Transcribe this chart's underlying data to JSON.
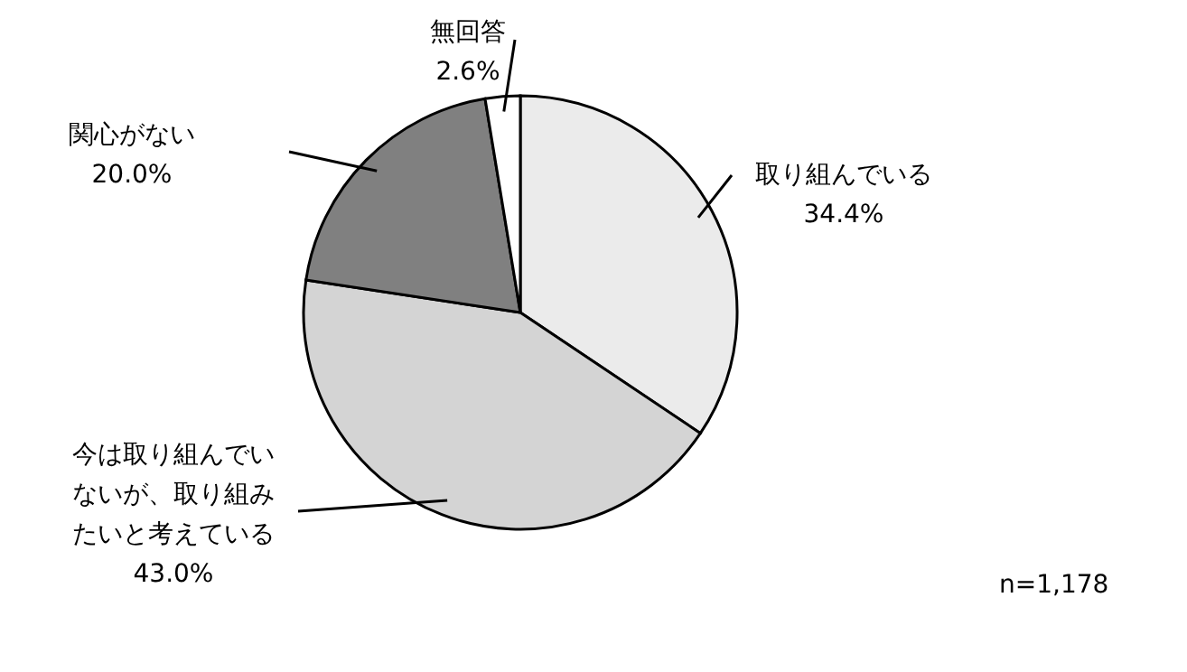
{
  "chart_data": {
    "type": "pie",
    "categories": [
      "取り組んでいる",
      "今は取り組んでいないが、取り組みたいと考えている",
      "関心がない",
      "無回答"
    ],
    "values": [
      34.4,
      43.0,
      20.0,
      2.6
    ],
    "colors": [
      "#ebebeb",
      "#d4d4d4",
      "#808080",
      "#ffffff"
    ],
    "value_labels": [
      "34.4%",
      "43.0%",
      "20.0%",
      "2.6%"
    ],
    "annotations": [
      "n=1,178"
    ]
  }
}
